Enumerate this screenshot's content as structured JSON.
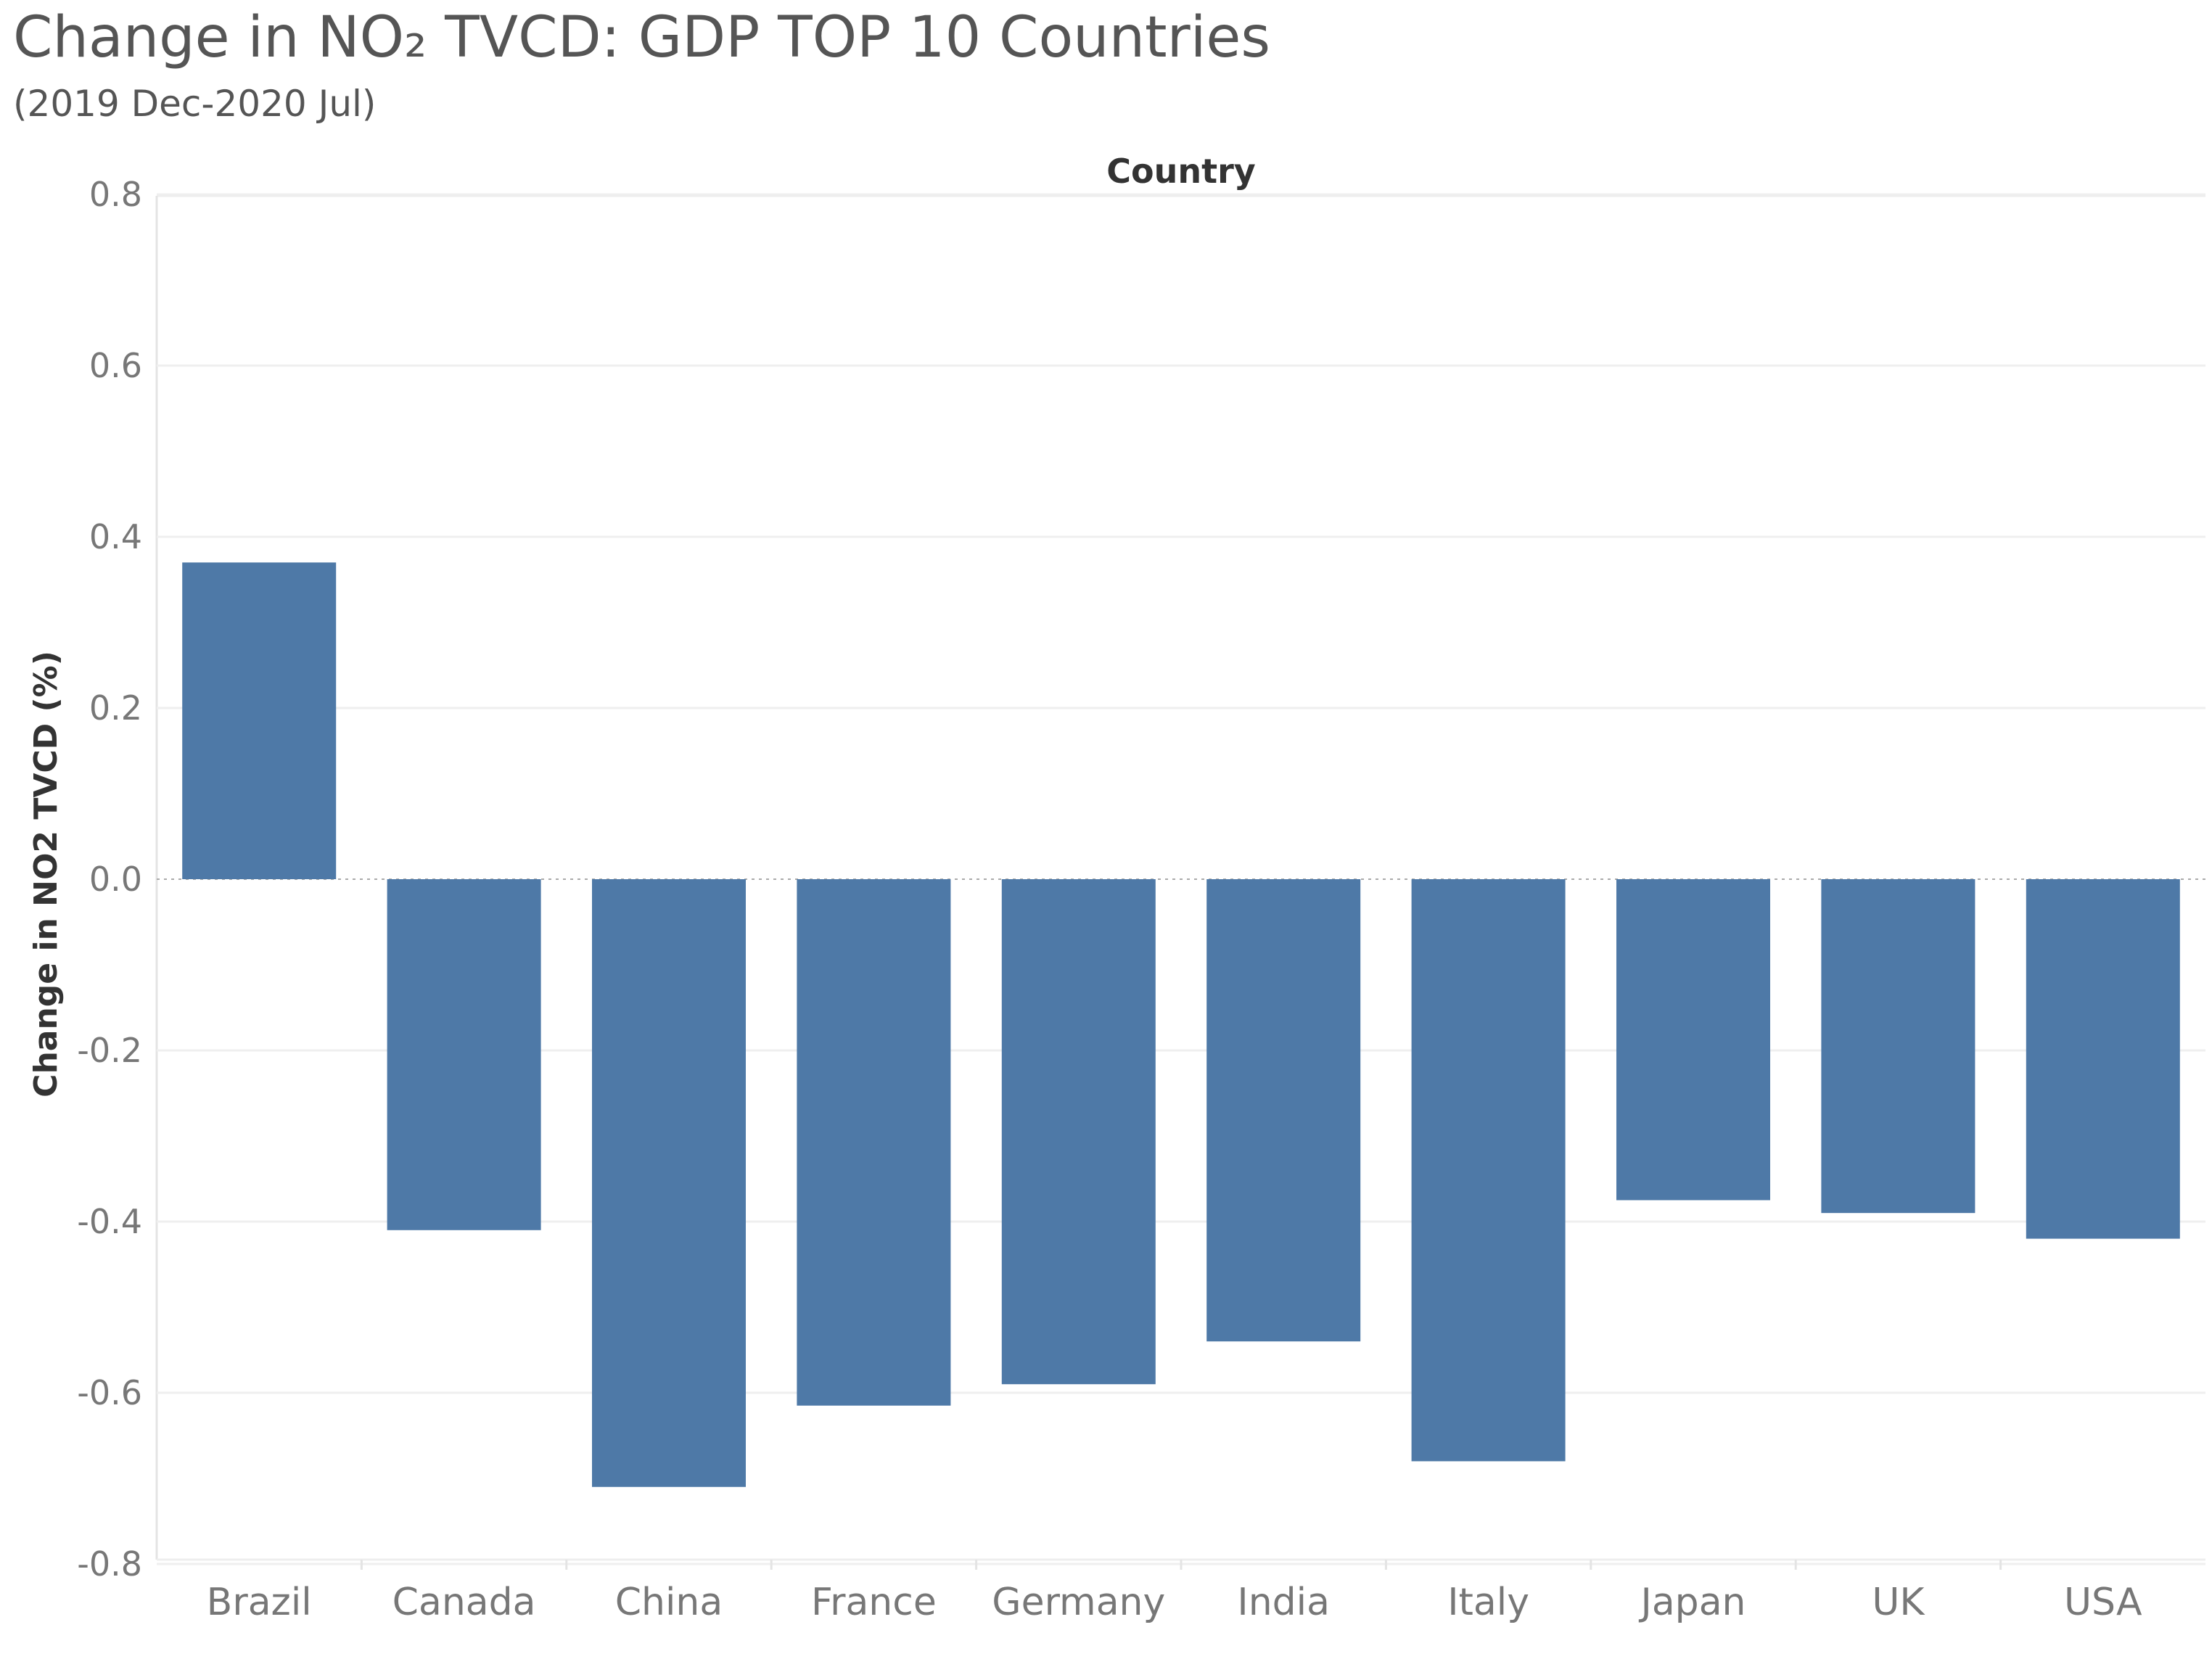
{
  "title": "Change in NO₂ TVCD: GDP TOP 10 Countries",
  "subtitle": "(2019 Dec-2020 Jul)",
  "chart_data": {
    "type": "bar",
    "title": "Change in NO₂ TVCD: GDP TOP 10 Countries",
    "subtitle": "(2019 Dec-2020 Jul)",
    "xlabel": "Country",
    "ylabel": "Change in NO2 TVCD (%)",
    "categories": [
      "Brazil",
      "Canada",
      "China",
      "France",
      "Germany",
      "India",
      "Italy",
      "Japan",
      "UK",
      "USA"
    ],
    "values": [
      0.37,
      -0.41,
      -0.71,
      -0.615,
      -0.59,
      -0.54,
      -0.68,
      -0.375,
      -0.39,
      -0.42
    ],
    "ylim": [
      -0.8,
      0.8
    ],
    "yticks": [
      "0.8",
      "0.6",
      "0.4",
      "0.2",
      "0.0",
      "-0.2",
      "-0.4",
      "-0.6",
      "-0.8"
    ],
    "grid": true,
    "bar_color": "#4e79a7"
  }
}
